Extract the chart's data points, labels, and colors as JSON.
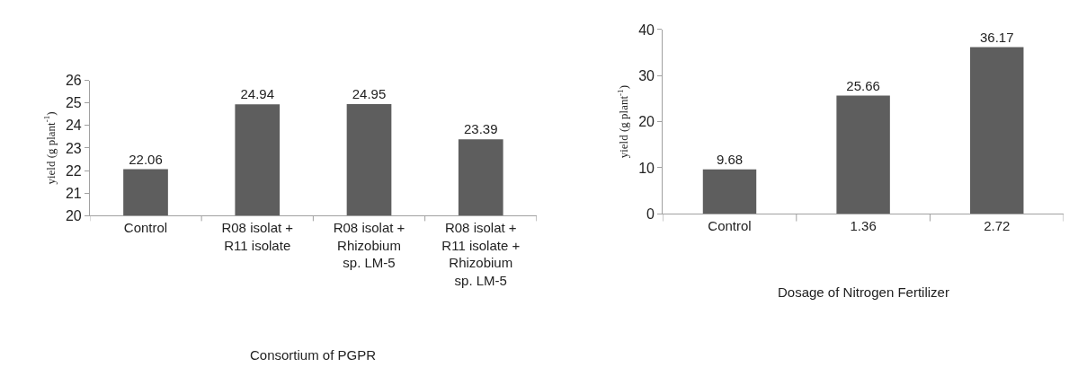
{
  "chart_data": [
    {
      "type": "bar",
      "categories": [
        "Control",
        "R08 isolat +\nR11 isolate",
        "R08 isolat +\nRhizobium\nsp. LM-5",
        "R08 isolat +\nR11 isolate +\nRhizobium\nsp. LM-5"
      ],
      "values": [
        22.06,
        24.94,
        24.95,
        23.39
      ],
      "color": "#5e5e5e",
      "ylim": [
        20,
        26
      ],
      "yticks": [
        20,
        21,
        22,
        23,
        24,
        25,
        26
      ],
      "ylabel": "yield (g plant$^{-1}$)",
      "xlabel": "Consortium of PGPR",
      "data_labels": true
    },
    {
      "type": "bar",
      "categories": [
        "Control",
        "1.36",
        "2.72"
      ],
      "values": [
        9.68,
        25.66,
        36.17
      ],
      "color": "#5e5e5e",
      "ylim": [
        0,
        40
      ],
      "yticks": [
        0,
        10,
        20,
        30,
        40
      ],
      "ylabel": "yield (g plant$^{-1}$)",
      "xlabel": "Dosage of Nitrogen Fertilizer",
      "data_labels": true
    }
  ]
}
